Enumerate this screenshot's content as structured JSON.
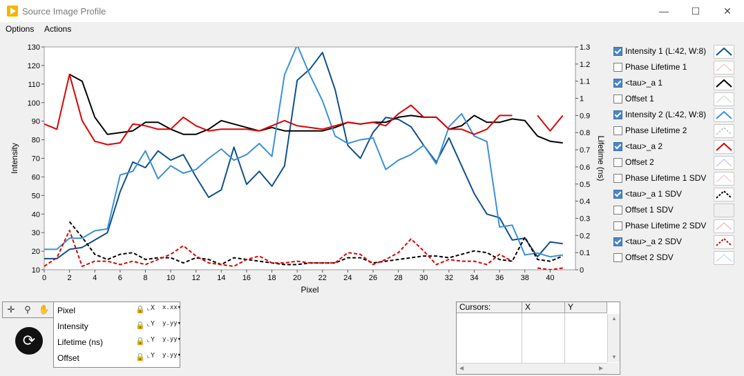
{
  "window": {
    "title": "Source Image Profile",
    "minimize": "—",
    "maximize": "☐",
    "close": "✕"
  },
  "menu": [
    "Options",
    "Actions"
  ],
  "chart_data": {
    "type": "line",
    "xlabel": "Pixel",
    "ylabel_left": "Intensity",
    "ylabel_right": "Lifetime (ns)",
    "xlim": [
      0,
      42
    ],
    "ylim_left": [
      10,
      130
    ],
    "ylim_right": [
      0,
      1.3
    ],
    "x_ticks": [
      0,
      2,
      4,
      6,
      8,
      10,
      12,
      14,
      16,
      18,
      20,
      22,
      24,
      26,
      28,
      30,
      32,
      34,
      36,
      38,
      40
    ],
    "y_left_ticks": [
      10,
      20,
      30,
      40,
      50,
      60,
      70,
      80,
      90,
      100,
      110,
      120,
      130
    ],
    "y_right_ticks": [
      "0",
      "0.1",
      "0.2",
      "0.3",
      "0.4",
      "0.5",
      "0.6",
      "0.7",
      "0.8",
      "0.9",
      "1",
      "1.1",
      "1.2",
      "1.3"
    ],
    "x_tick_labels": [
      "0",
      "2",
      "4",
      "6",
      "8",
      "10",
      "12",
      "14",
      "16",
      "18",
      "20",
      "22",
      "24",
      "26",
      "28",
      "30",
      "32",
      "34",
      "36",
      "38",
      "40"
    ],
    "y_left_tick_labels": [
      "10",
      "20",
      "30",
      "40",
      "50",
      "60",
      "70",
      "80",
      "90",
      "100",
      "110",
      "120",
      "130"
    ],
    "grid": false,
    "series": [
      {
        "name": "Intensity 1 (L:42, W:8)",
        "axis": "left",
        "color": "#0d4f8b",
        "dash": false,
        "x": [
          0,
          1,
          2,
          3,
          4,
          5,
          6,
          7,
          8,
          9,
          10,
          11,
          12,
          13,
          14,
          15,
          16,
          17,
          18,
          19,
          20,
          21,
          22,
          23,
          24,
          25,
          26,
          27,
          28,
          29,
          30,
          31,
          32,
          33,
          34,
          35,
          36,
          37,
          38,
          39,
          40,
          41
        ],
        "y": [
          16,
          16,
          21,
          22,
          26,
          30,
          52,
          68,
          65,
          74,
          69,
          72,
          60,
          49,
          53,
          76,
          56,
          63,
          55,
          66,
          112,
          118,
          127,
          107,
          77,
          70,
          84,
          92,
          91,
          87,
          77,
          68,
          81,
          66,
          51,
          40,
          38,
          26,
          27,
          17,
          25,
          24
        ]
      },
      {
        "name": "<tau>_a 1",
        "axis": "right",
        "color": "#000000",
        "dash": false,
        "x": [
          2,
          3,
          4,
          5,
          6,
          7,
          8,
          9,
          10,
          11,
          12,
          13,
          14,
          15,
          16,
          17,
          18,
          19,
          20,
          21,
          22,
          23,
          24,
          25,
          26,
          27,
          28,
          29,
          30,
          31,
          32,
          33,
          34,
          35,
          36,
          37,
          38,
          39,
          40,
          41
        ],
        "y": [
          1.14,
          1.1,
          0.89,
          0.79,
          0.8,
          0.81,
          0.86,
          0.86,
          0.82,
          0.79,
          0.79,
          0.82,
          0.87,
          0.85,
          0.83,
          0.81,
          0.83,
          0.81,
          0.81,
          0.81,
          0.81,
          0.83,
          0.86,
          0.85,
          0.86,
          0.86,
          0.89,
          0.9,
          0.89,
          0.89,
          0.82,
          0.84,
          0.9,
          0.86,
          0.86,
          0.88,
          0.87,
          0.78,
          0.75,
          0.74
        ]
      },
      {
        "name": "Intensity 2 (L:42, W:8)",
        "axis": "left",
        "color": "#3a8fd8",
        "dash": false,
        "x": [
          0,
          1,
          2,
          3,
          4,
          5,
          6,
          7,
          8,
          9,
          10,
          11,
          12,
          13,
          14,
          15,
          16,
          17,
          18,
          19,
          20,
          21,
          22,
          23,
          24,
          25,
          26,
          27,
          28,
          29,
          30,
          31,
          32,
          33,
          34,
          35,
          36,
          37,
          38,
          39,
          40,
          41
        ],
        "y": [
          21,
          21,
          27,
          27,
          31,
          32,
          61,
          63,
          74,
          59,
          66,
          62,
          64,
          70,
          75,
          69,
          72,
          78,
          71,
          115,
          131,
          115,
          101,
          82,
          78,
          80,
          81,
          64,
          69,
          72,
          77,
          67,
          87,
          94,
          82,
          79,
          33,
          34,
          18,
          19,
          17,
          18
        ]
      },
      {
        "name": "<tau>_a 2",
        "axis": "right",
        "color": "#dd0000",
        "dash": false,
        "x": [
          0,
          1,
          2,
          3,
          4,
          5,
          6,
          7,
          8,
          9,
          10,
          11,
          12,
          13,
          14,
          15,
          16,
          17,
          18,
          19,
          20,
          21,
          22,
          23,
          24,
          25,
          26,
          27,
          28,
          29,
          30,
          31,
          32,
          33,
          34,
          35,
          36,
          37,
          39,
          40,
          41
        ],
        "y": [
          0.85,
          0.82,
          1.14,
          0.87,
          0.75,
          0.73,
          0.74,
          0.85,
          0.84,
          0.82,
          0.82,
          0.89,
          0.84,
          0.81,
          0.82,
          0.82,
          0.82,
          0.81,
          0.84,
          0.87,
          0.84,
          0.83,
          0.82,
          0.84,
          0.86,
          0.85,
          0.86,
          0.84,
          0.91,
          0.96,
          0.89,
          0.89,
          0.82,
          0.82,
          0.79,
          0.82,
          0.9,
          0.9,
          0.9,
          0.81,
          0.9
        ],
        "gaps_after": [
          37
        ]
      },
      {
        "name": "<tau>_a 1 SDV",
        "axis": "right",
        "color": "#000000",
        "dash": true,
        "x": [
          2,
          3,
          4,
          5,
          6,
          7,
          8,
          9,
          10,
          11,
          12,
          13,
          14,
          15,
          16,
          17,
          18,
          19,
          20,
          21,
          22,
          23,
          24,
          25,
          26,
          27,
          28,
          29,
          30,
          31,
          32,
          33,
          34,
          35,
          36,
          37,
          38,
          39,
          40,
          41
        ],
        "y": [
          0.28,
          0.19,
          0.09,
          0.06,
          0.09,
          0.1,
          0.06,
          0.07,
          0.07,
          0.04,
          0.07,
          0.06,
          0.03,
          0.07,
          0.06,
          0.05,
          0.04,
          0.03,
          0.03,
          0.04,
          0.04,
          0.04,
          0.07,
          0.07,
          0.04,
          0.05,
          0.06,
          0.07,
          0.08,
          0.08,
          0.07,
          0.09,
          0.11,
          0.1,
          0.06,
          0.05,
          0.19,
          0.06,
          0.05,
          0.08
        ]
      },
      {
        "name": "<tau>_a 2 SDV",
        "axis": "right",
        "color": "#dd0000",
        "dash": true,
        "x": [
          0,
          1,
          2,
          3,
          4,
          5,
          6,
          7,
          8,
          9,
          10,
          11,
          12,
          13,
          14,
          15,
          16,
          17,
          18,
          19,
          20,
          21,
          22,
          23,
          24,
          25,
          26,
          27,
          28,
          29,
          30,
          31,
          32,
          33,
          34,
          35,
          36,
          37,
          39,
          40,
          41
        ],
        "y": [
          0.02,
          0.07,
          0.23,
          0.02,
          0.05,
          0.05,
          0.03,
          0.05,
          0.03,
          0.06,
          0.09,
          0.14,
          0.08,
          0.04,
          0.03,
          0.02,
          0.06,
          0.08,
          0.04,
          0.04,
          0.05,
          0.04,
          0.04,
          0.04,
          0.1,
          0.09,
          0.03,
          0.06,
          0.1,
          0.18,
          0.11,
          0.03,
          0.06,
          0.05,
          0.05,
          0.03,
          0.09,
          0.05,
          0.01,
          0.0,
          0.01
        ],
        "gaps_after": [
          37
        ]
      }
    ]
  },
  "legend": [
    {
      "label": "Intensity 1 (L:42, W:8)",
      "checked": true,
      "color": "#0d4f8b",
      "dash": false,
      "faded": false
    },
    {
      "label": "Phase Lifetime 1",
      "checked": false,
      "color": "#f2b6b6",
      "dash": false,
      "faded": true
    },
    {
      "label": "<tau>_a 1",
      "checked": true,
      "color": "#000000",
      "dash": false,
      "faded": false
    },
    {
      "label": "Offset 1",
      "checked": false,
      "color": "#b8dcc0",
      "dash": false,
      "faded": true
    },
    {
      "label": "Intensity 2 (L:42, W:8)",
      "checked": true,
      "color": "#3a8fd8",
      "dash": false,
      "faded": false
    },
    {
      "label": "Phase Lifetime 2",
      "checked": false,
      "color": "#9a9a9a",
      "dash": true,
      "faded": true
    },
    {
      "label": "<tau>_a 2",
      "checked": true,
      "color": "#dd0000",
      "dash": false,
      "faded": false
    },
    {
      "label": "Offset 2",
      "checked": false,
      "color": "#b4b4e6",
      "dash": false,
      "faded": true
    },
    {
      "label": "Phase Lifetime 1 SDV",
      "checked": false,
      "color": "#f4b4cc",
      "dash": false,
      "faded": true
    },
    {
      "label": "<tau>_a 1 SDV",
      "checked": true,
      "color": "#000000",
      "dash": true,
      "faded": false
    },
    {
      "label": "Offset 1 SDV",
      "checked": false,
      "color": "",
      "dash": false,
      "faded": true
    },
    {
      "label": "Phase Lifetime 2 SDV",
      "checked": false,
      "color": "#f4a0a0",
      "dash": false,
      "faded": true
    },
    {
      "label": "<tau>_a 2 SDV",
      "checked": true,
      "color": "#dd0000",
      "dash": true,
      "faded": false
    },
    {
      "label": "Offset 2 SDV",
      "checked": false,
      "color": "#a8d8e8",
      "dash": false,
      "faded": true
    }
  ],
  "palette_tools": [
    "crosshair-tool",
    "zoom-tool",
    "pan-tool"
  ],
  "scale_legend": [
    {
      "name": "Pixel",
      "autoscale": "X",
      "format": "x.xx"
    },
    {
      "name": "Intensity",
      "autoscale": "Y",
      "format": "y.yy"
    },
    {
      "name": "Lifetime (ns)",
      "autoscale": "Y",
      "format": "y.yy"
    },
    {
      "name": "Offset",
      "autoscale": "Y",
      "format": "y.yy"
    }
  ],
  "cursors": {
    "headers": [
      "Cursors:",
      "X",
      "Y"
    ]
  }
}
